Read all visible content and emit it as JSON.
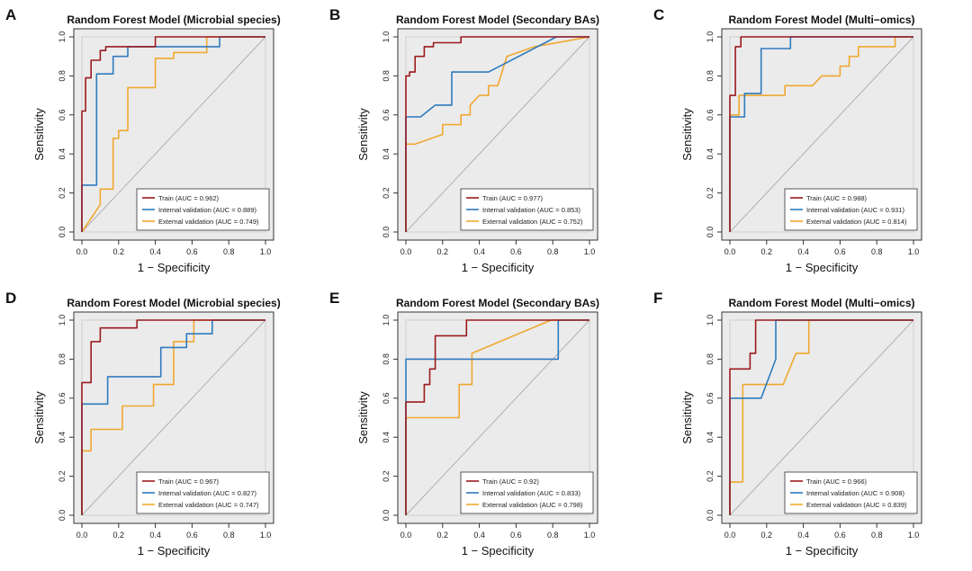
{
  "colors": {
    "train": "#9b1b1e",
    "internal": "#2f7bbd",
    "external": "#f0a830",
    "plot_bg": "#ebebeb",
    "diag": "#b0b0b0"
  },
  "chart_data": [
    {
      "type": "line",
      "panel_label": "A",
      "title": "Random Forest Model (Microbial species)",
      "xlabel": "1 − Specificity",
      "ylabel": "Sensitivity",
      "xlim": [
        0,
        1
      ],
      "ylim": [
        0,
        1
      ],
      "ticks": [
        "0.0",
        "0.2",
        "0.4",
        "0.6",
        "0.8",
        "1.0"
      ],
      "legend_position": "bottom-right",
      "series": [
        {
          "name": "Train",
          "legend": "Train (AUC = 0.962)",
          "key": "train",
          "points": [
            [
              0,
              0
            ],
            [
              0,
              0.62
            ],
            [
              0.02,
              0.62
            ],
            [
              0.02,
              0.79
            ],
            [
              0.05,
              0.79
            ],
            [
              0.05,
              0.88
            ],
            [
              0.1,
              0.88
            ],
            [
              0.1,
              0.93
            ],
            [
              0.13,
              0.93
            ],
            [
              0.13,
              0.95
            ],
            [
              0.2,
              0.95
            ],
            [
              0.4,
              0.95
            ],
            [
              0.4,
              1
            ],
            [
              1,
              1
            ]
          ]
        },
        {
          "name": "Internal validation",
          "legend": "Internal validation (AUC = 0.889)",
          "key": "internal",
          "points": [
            [
              0,
              0
            ],
            [
              0,
              0.24
            ],
            [
              0.08,
              0.24
            ],
            [
              0.08,
              0.81
            ],
            [
              0.17,
              0.81
            ],
            [
              0.17,
              0.9
            ],
            [
              0.25,
              0.9
            ],
            [
              0.25,
              0.95
            ],
            [
              0.75,
              0.95
            ],
            [
              0.75,
              1
            ],
            [
              1,
              1
            ]
          ]
        },
        {
          "name": "External validation",
          "legend": "External validation (AUC = 0.749)",
          "key": "external",
          "points": [
            [
              0,
              0
            ],
            [
              0.1,
              0.14
            ],
            [
              0.1,
              0.22
            ],
            [
              0.17,
              0.22
            ],
            [
              0.17,
              0.48
            ],
            [
              0.2,
              0.48
            ],
            [
              0.2,
              0.52
            ],
            [
              0.25,
              0.52
            ],
            [
              0.25,
              0.74
            ],
            [
              0.4,
              0.74
            ],
            [
              0.4,
              0.89
            ],
            [
              0.5,
              0.89
            ],
            [
              0.5,
              0.92
            ],
            [
              0.68,
              0.92
            ],
            [
              0.68,
              1
            ],
            [
              1,
              1
            ]
          ]
        }
      ]
    },
    {
      "type": "line",
      "panel_label": "B",
      "title": "Random Forest Model (Secondary BAs)",
      "xlabel": "1 − Specificity",
      "ylabel": "Sensitivity",
      "xlim": [
        0,
        1
      ],
      "ylim": [
        0,
        1
      ],
      "ticks": [
        "0.0",
        "0.2",
        "0.4",
        "0.6",
        "0.8",
        "1.0"
      ],
      "legend_position": "bottom-right",
      "series": [
        {
          "name": "Train",
          "legend": "Train (AUC = 0.977)",
          "key": "train",
          "points": [
            [
              0,
              0
            ],
            [
              0,
              0.8
            ],
            [
              0.02,
              0.8
            ],
            [
              0.02,
              0.82
            ],
            [
              0.05,
              0.82
            ],
            [
              0.05,
              0.9
            ],
            [
              0.1,
              0.9
            ],
            [
              0.1,
              0.95
            ],
            [
              0.15,
              0.95
            ],
            [
              0.15,
              0.97
            ],
            [
              0.3,
              0.97
            ],
            [
              0.3,
              1
            ],
            [
              1,
              1
            ]
          ]
        },
        {
          "name": "Internal validation",
          "legend": "Internal validation (AUC = 0.853)",
          "key": "internal",
          "points": [
            [
              0,
              0
            ],
            [
              0,
              0.59
            ],
            [
              0.08,
              0.59
            ],
            [
              0.16,
              0.65
            ],
            [
              0.25,
              0.65
            ],
            [
              0.25,
              0.82
            ],
            [
              0.45,
              0.82
            ],
            [
              0.82,
              1
            ],
            [
              1,
              1
            ]
          ]
        },
        {
          "name": "External validation",
          "legend": "External validation (AUC = 0.752)",
          "key": "external",
          "points": [
            [
              0,
              0
            ],
            [
              0,
              0.45
            ],
            [
              0.05,
              0.45
            ],
            [
              0.2,
              0.5
            ],
            [
              0.2,
              0.55
            ],
            [
              0.3,
              0.55
            ],
            [
              0.3,
              0.6
            ],
            [
              0.35,
              0.6
            ],
            [
              0.35,
              0.65
            ],
            [
              0.4,
              0.7
            ],
            [
              0.45,
              0.7
            ],
            [
              0.45,
              0.75
            ],
            [
              0.5,
              0.75
            ],
            [
              0.55,
              0.9
            ],
            [
              0.7,
              0.95
            ],
            [
              1,
              1
            ]
          ]
        }
      ]
    },
    {
      "type": "line",
      "panel_label": "C",
      "title": "Random Forest Model (Multi−omics)",
      "xlabel": "1 − Specificity",
      "ylabel": "Sensitivity",
      "xlim": [
        0,
        1
      ],
      "ylim": [
        0,
        1
      ],
      "ticks": [
        "0.0",
        "0.2",
        "0.4",
        "0.6",
        "0.8",
        "1.0"
      ],
      "legend_position": "bottom-right",
      "series": [
        {
          "name": "Train",
          "legend": "Train (AUC = 0.988)",
          "key": "train",
          "points": [
            [
              0,
              0
            ],
            [
              0,
              0.7
            ],
            [
              0.03,
              0.7
            ],
            [
              0.03,
              0.95
            ],
            [
              0.06,
              0.95
            ],
            [
              0.06,
              1
            ],
            [
              1,
              1
            ]
          ]
        },
        {
          "name": "Internal validation",
          "legend": "Internal validation (AUC = 0.931)",
          "key": "internal",
          "points": [
            [
              0,
              0
            ],
            [
              0,
              0.59
            ],
            [
              0.08,
              0.59
            ],
            [
              0.08,
              0.71
            ],
            [
              0.17,
              0.71
            ],
            [
              0.17,
              0.94
            ],
            [
              0.33,
              0.94
            ],
            [
              0.33,
              1
            ],
            [
              1,
              1
            ]
          ]
        },
        {
          "name": "External validation",
          "legend": "External validation (AUC = 0.814)",
          "key": "external",
          "points": [
            [
              0,
              0
            ],
            [
              0,
              0.6
            ],
            [
              0.05,
              0.6
            ],
            [
              0.05,
              0.7
            ],
            [
              0.3,
              0.7
            ],
            [
              0.3,
              0.75
            ],
            [
              0.45,
              0.75
            ],
            [
              0.5,
              0.8
            ],
            [
              0.6,
              0.8
            ],
            [
              0.6,
              0.85
            ],
            [
              0.65,
              0.85
            ],
            [
              0.65,
              0.9
            ],
            [
              0.7,
              0.9
            ],
            [
              0.7,
              0.95
            ],
            [
              0.9,
              0.95
            ],
            [
              0.9,
              1
            ],
            [
              1,
              1
            ]
          ]
        }
      ]
    },
    {
      "type": "line",
      "panel_label": "D",
      "title": "Random Forest Model (Microbial species)",
      "xlabel": "1 − Specificity",
      "ylabel": "Sensitivity",
      "xlim": [
        0,
        1
      ],
      "ylim": [
        0,
        1
      ],
      "ticks": [
        "0.0",
        "0.2",
        "0.4",
        "0.6",
        "0.8",
        "1.0"
      ],
      "legend_position": "bottom-right",
      "series": [
        {
          "name": "Train",
          "legend": "Train (AUC = 0.967)",
          "key": "train",
          "points": [
            [
              0,
              0
            ],
            [
              0,
              0.68
            ],
            [
              0.05,
              0.68
            ],
            [
              0.05,
              0.89
            ],
            [
              0.1,
              0.89
            ],
            [
              0.1,
              0.96
            ],
            [
              0.3,
              0.96
            ],
            [
              0.3,
              1
            ],
            [
              1,
              1
            ]
          ]
        },
        {
          "name": "Internal validation",
          "legend": "Internal validation (AUC = 0.827)",
          "key": "internal",
          "points": [
            [
              0,
              0
            ],
            [
              0,
              0.57
            ],
            [
              0.14,
              0.57
            ],
            [
              0.14,
              0.71
            ],
            [
              0.43,
              0.71
            ],
            [
              0.43,
              0.86
            ],
            [
              0.57,
              0.86
            ],
            [
              0.57,
              0.93
            ],
            [
              0.71,
              0.93
            ],
            [
              0.71,
              1
            ],
            [
              1,
              1
            ]
          ]
        },
        {
          "name": "External validation",
          "legend": "External validation (AUC = 0.747)",
          "key": "external",
          "points": [
            [
              0,
              0
            ],
            [
              0,
              0.33
            ],
            [
              0.05,
              0.33
            ],
            [
              0.05,
              0.44
            ],
            [
              0.22,
              0.44
            ],
            [
              0.22,
              0.56
            ],
            [
              0.39,
              0.56
            ],
            [
              0.39,
              0.67
            ],
            [
              0.5,
              0.67
            ],
            [
              0.5,
              0.89
            ],
            [
              0.61,
              0.89
            ],
            [
              0.61,
              1
            ],
            [
              1,
              1
            ]
          ]
        }
      ]
    },
    {
      "type": "line",
      "panel_label": "E",
      "title": "Random Forest Model (Secondary BAs)",
      "xlabel": "1 − Specificity",
      "ylabel": "Sensitivity",
      "xlim": [
        0,
        1
      ],
      "ylim": [
        0,
        1
      ],
      "ticks": [
        "0.0",
        "0.2",
        "0.4",
        "0.6",
        "0.8",
        "1.0"
      ],
      "legend_position": "bottom-right",
      "series": [
        {
          "name": "Train",
          "legend": "Train (AUC = 0.92)",
          "key": "train",
          "points": [
            [
              0,
              0
            ],
            [
              0,
              0.58
            ],
            [
              0.1,
              0.58
            ],
            [
              0.1,
              0.67
            ],
            [
              0.13,
              0.67
            ],
            [
              0.13,
              0.75
            ],
            [
              0.16,
              0.75
            ],
            [
              0.16,
              0.92
            ],
            [
              0.33,
              0.92
            ],
            [
              0.33,
              1
            ],
            [
              0.8,
              1
            ],
            [
              1,
              1
            ]
          ]
        },
        {
          "name": "Internal validation",
          "legend": "Internal validation (AUC = 0.833)",
          "key": "internal",
          "points": [
            [
              0,
              0
            ],
            [
              0,
              0.8
            ],
            [
              0.83,
              0.8
            ],
            [
              0.83,
              1
            ],
            [
              1,
              1
            ]
          ]
        },
        {
          "name": "External validation",
          "legend": "External validation (AUC = 0.798)",
          "key": "external",
          "points": [
            [
              0,
              0
            ],
            [
              0,
              0.5
            ],
            [
              0.29,
              0.5
            ],
            [
              0.29,
              0.67
            ],
            [
              0.36,
              0.67
            ],
            [
              0.36,
              0.83
            ],
            [
              0.79,
              1
            ],
            [
              1,
              1
            ]
          ]
        }
      ]
    },
    {
      "type": "line",
      "panel_label": "F",
      "title": "Random Forest Model (Multi−omics)",
      "xlabel": "1 − Specificity",
      "ylabel": "Sensitivity",
      "xlim": [
        0,
        1
      ],
      "ylim": [
        0,
        1
      ],
      "ticks": [
        "0.0",
        "0.2",
        "0.4",
        "0.6",
        "0.8",
        "1.0"
      ],
      "legend_position": "bottom-right",
      "series": [
        {
          "name": "Train",
          "legend": "Train (AUC = 0.966)",
          "key": "train",
          "points": [
            [
              0,
              0
            ],
            [
              0,
              0.75
            ],
            [
              0.11,
              0.75
            ],
            [
              0.11,
              0.83
            ],
            [
              0.14,
              0.83
            ],
            [
              0.14,
              1
            ],
            [
              1,
              1
            ]
          ]
        },
        {
          "name": "Internal validation",
          "legend": "Internal validation (AUC = 0.908)",
          "key": "internal",
          "points": [
            [
              0,
              0
            ],
            [
              0,
              0.6
            ],
            [
              0.17,
              0.6
            ],
            [
              0.25,
              0.8
            ],
            [
              0.25,
              1
            ],
            [
              1,
              1
            ]
          ]
        },
        {
          "name": "External validation",
          "legend": "External validation (AUC = 0.839)",
          "key": "external",
          "points": [
            [
              0,
              0
            ],
            [
              0,
              0.17
            ],
            [
              0.07,
              0.17
            ],
            [
              0.07,
              0.67
            ],
            [
              0.29,
              0.67
            ],
            [
              0.36,
              0.83
            ],
            [
              0.43,
              0.83
            ],
            [
              0.43,
              1
            ],
            [
              1,
              1
            ]
          ]
        }
      ]
    }
  ]
}
